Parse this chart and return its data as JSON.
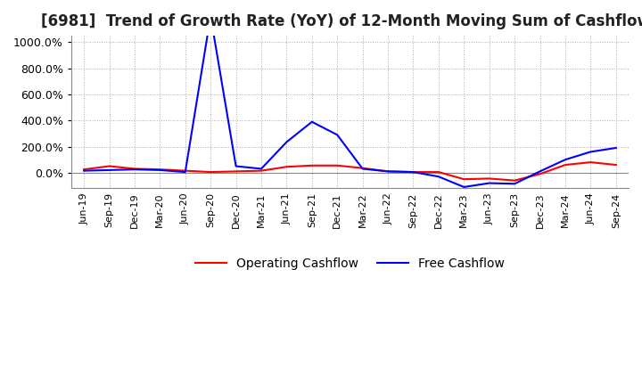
{
  "title": "[6981]  Trend of Growth Rate (YoY) of 12-Month Moving Sum of Cashflows",
  "title_fontsize": 12,
  "background_color": "#ffffff",
  "grid_color": "#aaaaaa",
  "ylim": [
    -120,
    1050
  ],
  "yticks": [
    0,
    200,
    400,
    600,
    800,
    1000
  ],
  "x_labels": [
    "Jun-19",
    "Sep-19",
    "Dec-19",
    "Mar-20",
    "Jun-20",
    "Sep-20",
    "Dec-20",
    "Mar-21",
    "Jun-21",
    "Sep-21",
    "Dec-21",
    "Mar-22",
    "Jun-22",
    "Sep-22",
    "Dec-22",
    "Mar-23",
    "Jun-23",
    "Sep-23",
    "Dec-23",
    "Mar-24",
    "Jun-24",
    "Sep-24"
  ],
  "operating_cashflow": [
    25,
    50,
    30,
    25,
    15,
    5,
    10,
    15,
    45,
    55,
    55,
    35,
    10,
    5,
    5,
    -50,
    -45,
    -60,
    -10,
    60,
    80,
    60
  ],
  "free_cashflow": [
    15,
    20,
    25,
    20,
    5,
    1200,
    50,
    30,
    235,
    390,
    290,
    30,
    10,
    5,
    -30,
    -110,
    -80,
    -85,
    10,
    100,
    160,
    190
  ],
  "op_color": "#ff0000",
  "fc_color": "#0000ff",
  "legend_labels": [
    "Operating Cashflow",
    "Free Cashflow"
  ]
}
